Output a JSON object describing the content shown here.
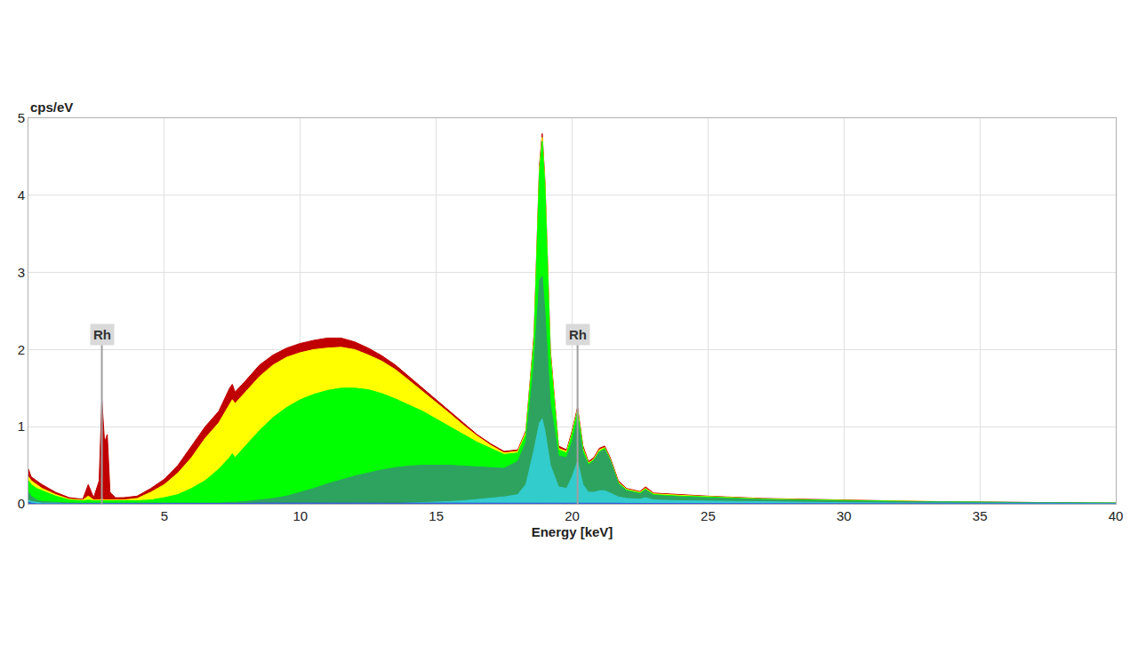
{
  "chart_data": {
    "type": "area",
    "x_label": "Energy [keV]",
    "y_label": "cps/eV",
    "x": [
      0,
      0.1,
      0.3,
      0.5,
      1,
      1.5,
      2,
      2.2,
      2.4,
      2.6,
      2.7,
      2.8,
      2.9,
      3.0,
      3.2,
      3.5,
      4,
      4.5,
      5,
      5.5,
      6,
      6.5,
      7,
      7.4,
      7.5,
      7.6,
      8,
      8.5,
      9,
      9.5,
      10,
      10.5,
      11,
      11.5,
      12,
      12.5,
      13,
      13.5,
      14,
      14.5,
      15,
      15.5,
      16,
      16.5,
      17,
      17.5,
      18,
      18.3,
      18.6,
      18.8,
      18.9,
      19.0,
      19.2,
      19.5,
      19.8,
      20.0,
      20.2,
      20.4,
      20.6,
      20.8,
      21.0,
      21.2,
      21.4,
      21.7,
      22,
      22.5,
      22.7,
      23,
      24,
      25,
      27,
      30,
      33,
      36,
      40
    ],
    "series": [
      {
        "color": "#c00000",
        "values": [
          0.45,
          0.35,
          0.3,
          0.25,
          0.15,
          0.08,
          0.06,
          0.25,
          0.08,
          0.3,
          1.35,
          0.8,
          0.9,
          0.15,
          0.08,
          0.08,
          0.1,
          0.2,
          0.32,
          0.5,
          0.75,
          1.0,
          1.2,
          1.5,
          1.55,
          1.45,
          1.6,
          1.8,
          1.93,
          2.02,
          2.08,
          2.12,
          2.15,
          2.15,
          2.1,
          2.02,
          1.92,
          1.8,
          1.65,
          1.5,
          1.35,
          1.2,
          1.05,
          0.9,
          0.78,
          0.68,
          0.7,
          0.95,
          2.2,
          4.4,
          4.8,
          4.2,
          2.0,
          0.75,
          0.7,
          0.95,
          1.25,
          0.75,
          0.55,
          0.6,
          0.72,
          0.75,
          0.6,
          0.3,
          0.2,
          0.16,
          0.22,
          0.14,
          0.12,
          0.1,
          0.07,
          0.05,
          0.03,
          0.02,
          0.01
        ]
      },
      {
        "color": "#ffff00",
        "values": [
          0.35,
          0.3,
          0.25,
          0.2,
          0.12,
          0.06,
          0.05,
          0.1,
          0.05,
          0.05,
          0.06,
          0.05,
          0.05,
          0.05,
          0.05,
          0.05,
          0.07,
          0.15,
          0.25,
          0.4,
          0.6,
          0.85,
          1.05,
          1.3,
          1.35,
          1.3,
          1.45,
          1.65,
          1.8,
          1.9,
          1.96,
          2.0,
          2.02,
          2.03,
          2.0,
          1.93,
          1.85,
          1.74,
          1.6,
          1.46,
          1.32,
          1.17,
          1.02,
          0.88,
          0.76,
          0.66,
          0.68,
          0.93,
          2.15,
          4.35,
          4.75,
          4.15,
          1.95,
          0.72,
          0.68,
          0.92,
          1.22,
          0.72,
          0.53,
          0.58,
          0.7,
          0.73,
          0.58,
          0.28,
          0.19,
          0.15,
          0.2,
          0.13,
          0.11,
          0.095,
          0.065,
          0.045,
          0.028,
          0.018,
          0.01
        ]
      },
      {
        "color": "#00ff00",
        "values": [
          0.3,
          0.25,
          0.2,
          0.17,
          0.1,
          0.05,
          0.04,
          0.05,
          0.04,
          0.04,
          0.04,
          0.04,
          0.04,
          0.04,
          0.04,
          0.04,
          0.04,
          0.05,
          0.08,
          0.12,
          0.2,
          0.3,
          0.45,
          0.6,
          0.65,
          0.6,
          0.75,
          0.95,
          1.12,
          1.25,
          1.35,
          1.42,
          1.47,
          1.5,
          1.5,
          1.48,
          1.43,
          1.36,
          1.28,
          1.2,
          1.1,
          1.0,
          0.9,
          0.8,
          0.72,
          0.64,
          0.66,
          0.9,
          2.1,
          4.3,
          4.7,
          4.1,
          1.9,
          0.7,
          0.66,
          0.9,
          1.2,
          0.7,
          0.52,
          0.57,
          0.68,
          0.72,
          0.57,
          0.27,
          0.18,
          0.14,
          0.19,
          0.12,
          0.1,
          0.09,
          0.06,
          0.04,
          0.027,
          0.017,
          0.01
        ]
      },
      {
        "color": "#2ea35f",
        "values": [
          0.15,
          0.1,
          0.05,
          0.03,
          0.02,
          0.01,
          0.01,
          0.01,
          0.01,
          0.01,
          0.01,
          0.01,
          0.01,
          0.01,
          0.01,
          0.01,
          0.01,
          0.01,
          0.01,
          0.01,
          0.01,
          0.01,
          0.01,
          0.02,
          0.02,
          0.02,
          0.03,
          0.05,
          0.07,
          0.1,
          0.15,
          0.2,
          0.26,
          0.31,
          0.36,
          0.4,
          0.44,
          0.47,
          0.49,
          0.5,
          0.5,
          0.5,
          0.49,
          0.48,
          0.47,
          0.46,
          0.55,
          0.8,
          1.8,
          2.9,
          2.95,
          2.5,
          1.3,
          0.62,
          0.6,
          0.8,
          1.1,
          0.65,
          0.5,
          0.56,
          0.67,
          0.7,
          0.56,
          0.26,
          0.17,
          0.13,
          0.18,
          0.11,
          0.09,
          0.08,
          0.055,
          0.035,
          0.025,
          0.015,
          0.01
        ]
      },
      {
        "color": "#33cccc",
        "values": [
          0.05,
          0.03,
          0.02,
          0.01,
          0.01,
          0,
          0,
          0,
          0,
          0,
          0,
          0,
          0,
          0,
          0,
          0,
          0,
          0,
          0,
          0,
          0,
          0,
          0,
          0,
          0,
          0,
          0,
          0,
          0,
          0,
          0,
          0,
          0,
          0,
          0,
          0,
          0,
          0,
          0.01,
          0.015,
          0.02,
          0.03,
          0.04,
          0.055,
          0.07,
          0.09,
          0.12,
          0.25,
          0.7,
          1.05,
          1.1,
          0.95,
          0.5,
          0.22,
          0.2,
          0.35,
          0.55,
          0.25,
          0.15,
          0.15,
          0.17,
          0.17,
          0.14,
          0.09,
          0.07,
          0.06,
          0.08,
          0.05,
          0.04,
          0.035,
          0.025,
          0.015,
          0.01,
          0.007,
          0.005
        ]
      },
      {
        "color": "#3355dd",
        "values": [
          0.02,
          0.01,
          0,
          0,
          0,
          0,
          0,
          0,
          0,
          0,
          0,
          0,
          0,
          0,
          0,
          0,
          0,
          0,
          0,
          0,
          0,
          0,
          0,
          0,
          0,
          0,
          0.005,
          0.01,
          0.01,
          0.01,
          0.015,
          0.015,
          0.015,
          0.015,
          0.015,
          0.015,
          0.015,
          0.015,
          0.015,
          0.015,
          0.015,
          0.015,
          0.015,
          0.012,
          0.01,
          0.01,
          0.01,
          0.01,
          0.01,
          0.01,
          0.01,
          0.01,
          0.01,
          0.01,
          0.01,
          0.01,
          0.01,
          0.01,
          0.01,
          0.01,
          0.01,
          0.01,
          0.01,
          0.008,
          0.006,
          0.005,
          0.005,
          0.005,
          0.004,
          0.004,
          0.003,
          0.002,
          0.001,
          0.001,
          0
        ]
      }
    ],
    "xlim": [
      0,
      40
    ],
    "xticks": [
      5,
      10,
      15,
      20,
      25,
      30,
      35,
      40
    ],
    "ylim": [
      0,
      5
    ],
    "yticks": [
      0,
      1,
      2,
      3,
      4,
      5
    ],
    "grid": true,
    "annotations": [
      {
        "text": "Rh",
        "x": 2.7,
        "y": 2.2
      },
      {
        "text": "Rh",
        "x": 20.2,
        "y": 2.2
      }
    ]
  }
}
